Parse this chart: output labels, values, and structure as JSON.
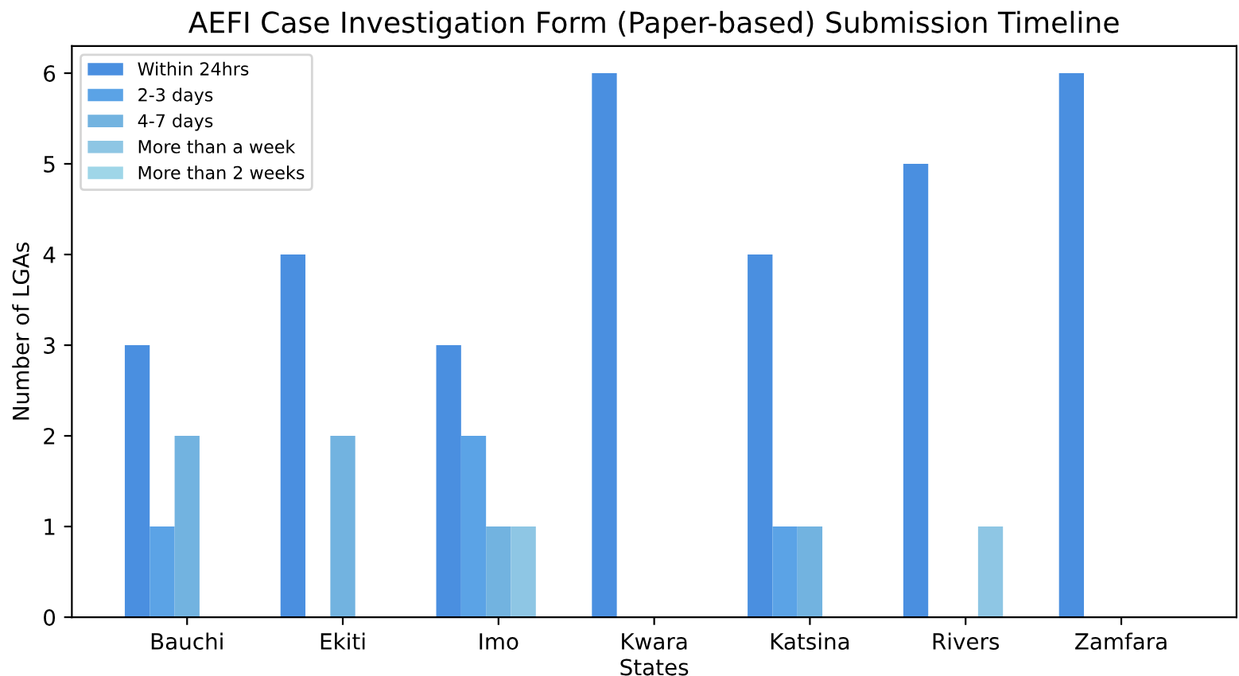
{
  "chart_data": {
    "type": "bar",
    "title": "AEFI Case Investigation Form (Paper-based) Submission Timeline",
    "xlabel": "States",
    "ylabel": "Number of LGAs",
    "categories": [
      "Bauchi",
      "Ekiti",
      "Imo",
      "Kwara",
      "Katsina",
      "Rivers",
      "Zamfara"
    ],
    "series": [
      {
        "name": "Within 24hrs",
        "color": "#4a8fe0",
        "values": [
          3,
          4,
          3,
          6,
          4,
          5,
          6
        ]
      },
      {
        "name": "2-3 days",
        "color": "#5ba3e6",
        "values": [
          1,
          0,
          2,
          0,
          1,
          0,
          0
        ]
      },
      {
        "name": "4-7 days",
        "color": "#72b3e0",
        "values": [
          2,
          2,
          1,
          0,
          1,
          0,
          0
        ]
      },
      {
        "name": "More than a week",
        "color": "#8ec6e4",
        "values": [
          0,
          0,
          1,
          0,
          0,
          1,
          0
        ]
      },
      {
        "name": "More than 2 weeks",
        "color": "#9fd6e8",
        "values": [
          0,
          0,
          0,
          0,
          0,
          0,
          0
        ]
      }
    ],
    "ylim": [
      0,
      6.3
    ],
    "yticks": [
      0,
      1,
      2,
      3,
      4,
      5,
      6
    ],
    "grid": false,
    "legend": "top left"
  }
}
